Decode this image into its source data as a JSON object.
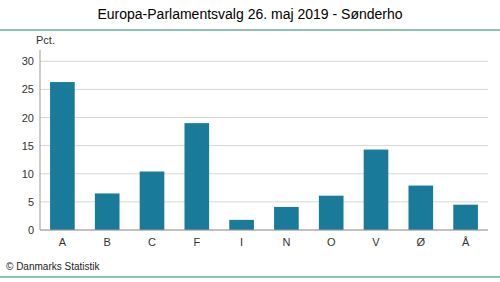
{
  "chart_data": {
    "type": "bar",
    "title": "Europa-Parlamentsvalg 26. maj 2019 - Sønderho",
    "ylabel": "Pct.",
    "categories": [
      "A",
      "B",
      "C",
      "F",
      "I",
      "N",
      "O",
      "V",
      "Ø",
      "Å"
    ],
    "values": [
      26.3,
      6.5,
      10.4,
      19.0,
      1.8,
      4.1,
      6.1,
      14.3,
      7.9,
      4.5
    ],
    "color": "#1a7a9a",
    "ylim": [
      0,
      32
    ],
    "yticks": [
      0,
      5,
      10,
      15,
      20,
      25,
      30
    ],
    "grid": true,
    "annotations": [
      "© Danmarks Statistik"
    ]
  }
}
